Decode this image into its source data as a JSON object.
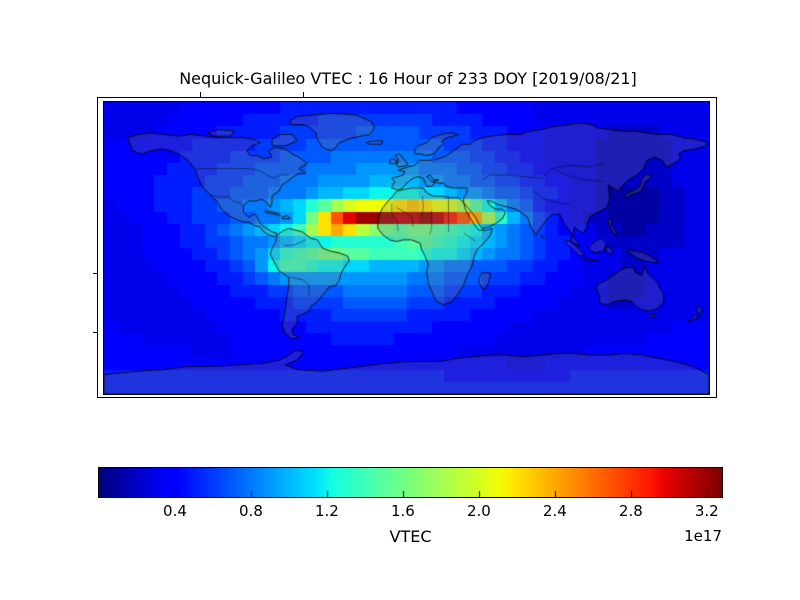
{
  "figure": {
    "background": "#ffffff"
  },
  "chart_data": {
    "type": "heatmap",
    "title": "Nequick-Galileo VTEC : 16 Hour of 233 DOY [2019/08/21]",
    "projection": "equirectangular world map, lon -180..180 (x), lat 90..-90 (y)",
    "map_overlay": "world coastlines with gray land tint and country borders",
    "colormap": "jet",
    "vmin": 0,
    "vmax": 3.28e+17,
    "grid": {
      "lon_start": -180,
      "lon_step": 7.5,
      "lat_start": 90,
      "lat_step": -7.5,
      "cols": 48,
      "rows": 24,
      "value_units": "1e16",
      "values": [
        [
          3,
          3,
          3,
          3,
          3,
          3,
          4,
          4,
          4,
          4,
          4,
          4,
          4,
          4,
          5,
          5,
          5,
          5,
          5,
          5,
          5,
          5,
          5,
          5,
          5,
          5,
          5,
          5,
          4,
          4,
          4,
          4,
          4,
          4,
          3,
          3,
          3,
          3,
          3,
          3,
          3,
          3,
          3,
          3,
          3,
          3,
          3,
          3
        ],
        [
          3,
          3,
          3,
          3,
          3,
          4,
          4,
          4,
          4,
          4,
          4,
          5,
          5,
          5,
          5,
          5,
          5,
          6,
          6,
          6,
          6,
          6,
          6,
          6,
          6,
          6,
          5,
          5,
          5,
          5,
          4,
          4,
          4,
          4,
          3,
          3,
          3,
          3,
          3,
          3,
          3,
          3,
          3,
          3,
          3,
          3,
          3,
          3
        ],
        [
          3,
          3,
          3,
          3,
          4,
          4,
          4,
          4,
          4,
          5,
          5,
          5,
          5,
          5,
          6,
          6,
          6,
          6,
          6,
          6,
          7,
          7,
          7,
          7,
          7,
          6,
          6,
          6,
          6,
          5,
          5,
          5,
          4,
          4,
          4,
          3,
          3,
          3,
          3,
          3,
          2,
          2,
          2,
          2,
          3,
          3,
          3,
          3
        ],
        [
          4,
          4,
          4,
          4,
          4,
          4,
          4,
          5,
          5,
          5,
          5,
          5,
          6,
          6,
          6,
          6,
          7,
          7,
          7,
          7,
          7,
          7,
          7,
          7,
          7,
          7,
          7,
          6,
          6,
          6,
          5,
          5,
          4,
          4,
          4,
          3,
          3,
          3,
          3,
          2,
          2,
          2,
          2,
          2,
          2,
          3,
          3,
          3
        ],
        [
          4,
          4,
          4,
          4,
          4,
          4,
          5,
          5,
          5,
          5,
          6,
          6,
          6,
          6,
          7,
          7,
          7,
          7,
          8,
          8,
          8,
          8,
          8,
          8,
          8,
          8,
          7,
          7,
          7,
          6,
          6,
          5,
          5,
          4,
          4,
          3,
          3,
          3,
          3,
          2,
          2,
          2,
          2,
          2,
          2,
          3,
          3,
          3
        ],
        [
          4,
          4,
          4,
          4,
          4,
          5,
          5,
          5,
          5,
          6,
          6,
          6,
          7,
          7,
          7,
          7,
          8,
          8,
          8,
          8,
          9,
          9,
          9,
          9,
          9,
          8,
          8,
          8,
          7,
          7,
          6,
          6,
          5,
          5,
          4,
          4,
          3,
          3,
          3,
          2,
          2,
          2,
          2,
          2,
          2,
          3,
          3,
          3
        ],
        [
          4,
          4,
          4,
          4,
          5,
          5,
          5,
          5,
          6,
          6,
          6,
          7,
          7,
          7,
          8,
          8,
          8,
          9,
          9,
          9,
          9,
          10,
          10,
          10,
          10,
          9,
          9,
          8,
          8,
          7,
          7,
          6,
          6,
          5,
          5,
          4,
          4,
          3,
          3,
          2,
          2,
          2,
          2,
          2,
          2,
          3,
          3,
          3
        ],
        [
          4,
          4,
          4,
          4,
          5,
          5,
          5,
          6,
          6,
          6,
          7,
          7,
          7,
          8,
          8,
          8,
          9,
          10,
          10,
          11,
          11,
          12,
          12,
          12,
          12,
          11,
          11,
          10,
          9,
          9,
          8,
          7,
          7,
          6,
          5,
          5,
          4,
          3,
          3,
          2,
          1,
          1,
          1,
          1,
          2,
          2,
          3,
          3
        ],
        [
          3,
          4,
          4,
          4,
          5,
          5,
          5,
          6,
          6,
          7,
          7,
          8,
          8,
          9,
          10,
          11,
          13,
          15,
          18,
          20,
          21,
          21,
          21,
          22,
          23,
          22,
          21,
          20,
          18,
          15,
          12,
          10,
          8,
          7,
          5,
          4,
          4,
          3,
          3,
          2,
          1,
          1,
          1,
          1,
          2,
          2,
          3,
          3
        ],
        [
          3,
          3,
          4,
          4,
          4,
          5,
          5,
          6,
          6,
          6,
          7,
          7,
          8,
          8,
          9,
          11,
          16,
          22,
          27,
          30,
          32,
          32,
          32,
          31,
          31,
          32,
          31,
          29,
          27,
          24,
          18,
          13,
          10,
          8,
          6,
          5,
          4,
          3,
          2,
          2,
          1,
          1,
          1,
          1,
          2,
          2,
          3,
          3
        ],
        [
          3,
          3,
          3,
          4,
          4,
          4,
          5,
          5,
          6,
          7,
          8,
          9,
          10,
          11,
          12,
          14,
          18,
          22,
          24,
          22,
          19,
          17,
          16,
          15,
          16,
          16,
          15,
          14,
          13,
          12,
          10,
          9,
          8,
          7,
          6,
          5,
          4,
          4,
          3,
          2,
          2,
          1,
          1,
          2,
          2,
          2,
          3,
          3
        ],
        [
          3,
          3,
          3,
          4,
          4,
          4,
          5,
          5,
          6,
          6,
          7,
          8,
          8,
          9,
          10,
          11,
          12,
          12,
          13,
          13,
          13,
          13,
          13,
          14,
          15,
          15,
          14,
          13,
          12,
          11,
          10,
          9,
          8,
          7,
          6,
          5,
          5,
          4,
          3,
          3,
          2,
          2,
          2,
          2,
          2,
          2,
          3,
          3
        ],
        [
          3,
          3,
          3,
          4,
          4,
          4,
          4,
          5,
          5,
          6,
          7,
          8,
          9,
          11,
          13,
          14,
          15,
          16,
          16,
          15,
          15,
          14,
          14,
          14,
          14,
          13,
          12,
          12,
          11,
          10,
          9,
          8,
          8,
          7,
          6,
          5,
          5,
          4,
          4,
          3,
          3,
          2,
          2,
          2,
          3,
          3,
          3,
          3
        ],
        [
          3,
          3,
          3,
          3,
          4,
          4,
          4,
          4,
          5,
          5,
          6,
          7,
          9,
          12,
          14,
          14,
          13,
          12,
          12,
          11,
          11,
          10,
          10,
          10,
          10,
          9,
          9,
          8,
          8,
          7,
          7,
          7,
          6,
          6,
          5,
          5,
          4,
          4,
          3,
          3,
          3,
          2,
          2,
          3,
          3,
          3,
          3,
          3
        ],
        [
          3,
          3,
          3,
          3,
          3,
          4,
          4,
          4,
          4,
          5,
          5,
          6,
          7,
          8,
          9,
          9,
          9,
          9,
          9,
          9,
          9,
          9,
          9,
          9,
          8,
          8,
          8,
          7,
          7,
          7,
          6,
          6,
          6,
          5,
          5,
          4,
          4,
          4,
          3,
          3,
          2,
          2,
          2,
          3,
          3,
          3,
          3,
          3
        ],
        [
          3,
          3,
          3,
          3,
          3,
          3,
          4,
          4,
          4,
          4,
          5,
          5,
          5,
          6,
          6,
          7,
          7,
          7,
          7,
          8,
          8,
          8,
          8,
          8,
          7,
          7,
          7,
          6,
          6,
          6,
          5,
          5,
          5,
          4,
          4,
          4,
          4,
          3,
          3,
          3,
          2,
          2,
          2,
          3,
          3,
          3,
          3,
          3
        ],
        [
          3,
          3,
          3,
          3,
          3,
          3,
          3,
          4,
          4,
          4,
          4,
          4,
          5,
          5,
          5,
          6,
          6,
          6,
          6,
          7,
          7,
          7,
          7,
          7,
          6,
          6,
          6,
          5,
          5,
          5,
          5,
          4,
          4,
          4,
          4,
          4,
          3,
          3,
          3,
          3,
          2,
          2,
          3,
          3,
          3,
          3,
          3,
          3
        ],
        [
          3,
          3,
          3,
          3,
          3,
          3,
          3,
          3,
          4,
          4,
          4,
          4,
          4,
          4,
          5,
          5,
          5,
          5,
          6,
          6,
          6,
          6,
          6,
          6,
          5,
          5,
          5,
          5,
          5,
          4,
          4,
          4,
          4,
          4,
          3,
          3,
          3,
          3,
          3,
          3,
          3,
          3,
          3,
          3,
          3,
          3,
          3,
          3
        ],
        [
          4,
          3,
          3,
          3,
          3,
          3,
          3,
          3,
          3,
          4,
          4,
          4,
          4,
          4,
          4,
          4,
          5,
          5,
          5,
          5,
          5,
          5,
          5,
          5,
          5,
          5,
          4,
          4,
          4,
          4,
          4,
          4,
          3,
          3,
          3,
          3,
          3,
          3,
          3,
          3,
          3,
          3,
          3,
          3,
          3,
          4,
          4,
          4
        ],
        [
          4,
          4,
          4,
          3,
          3,
          3,
          3,
          3,
          3,
          3,
          4,
          4,
          4,
          4,
          4,
          4,
          4,
          4,
          5,
          5,
          5,
          5,
          5,
          4,
          4,
          4,
          4,
          4,
          4,
          4,
          4,
          3,
          3,
          3,
          3,
          3,
          3,
          3,
          3,
          3,
          3,
          3,
          3,
          4,
          4,
          4,
          4,
          4
        ],
        [
          4,
          4,
          4,
          4,
          4,
          4,
          4,
          3,
          3,
          3,
          4,
          4,
          4,
          4,
          4,
          4,
          4,
          4,
          4,
          4,
          4,
          4,
          4,
          4,
          4,
          4,
          4,
          4,
          3,
          3,
          3,
          3,
          3,
          3,
          3,
          3,
          3,
          3,
          4,
          4,
          4,
          4,
          4,
          4,
          4,
          4,
          4,
          4
        ],
        [
          4,
          4,
          4,
          4,
          4,
          4,
          4,
          4,
          4,
          4,
          4,
          4,
          4,
          4,
          4,
          4,
          4,
          4,
          4,
          4,
          4,
          4,
          4,
          4,
          4,
          4,
          4,
          4,
          4,
          4,
          4,
          4,
          3,
          3,
          3,
          4,
          4,
          4,
          4,
          4,
          4,
          4,
          4,
          4,
          4,
          4,
          4,
          4
        ],
        [
          5,
          5,
          5,
          5,
          5,
          5,
          5,
          5,
          5,
          5,
          5,
          5,
          5,
          5,
          5,
          5,
          5,
          5,
          5,
          5,
          5,
          5,
          5,
          5,
          5,
          5,
          5,
          4,
          4,
          4,
          4,
          4,
          4,
          4,
          4,
          4,
          4,
          5,
          5,
          5,
          5,
          5,
          5,
          5,
          5,
          5,
          5,
          5
        ],
        [
          5,
          5,
          5,
          5,
          5,
          5,
          5,
          5,
          5,
          5,
          5,
          5,
          5,
          5,
          5,
          5,
          5,
          5,
          5,
          5,
          5,
          5,
          5,
          5,
          5,
          5,
          5,
          5,
          5,
          5,
          5,
          5,
          5,
          5,
          5,
          5,
          5,
          5,
          5,
          5,
          5,
          5,
          5,
          5,
          5,
          5,
          5,
          5
        ]
      ]
    },
    "colorbar": {
      "orientation": "horizontal",
      "ticks": [
        0.4,
        0.8,
        1.2,
        1.6,
        2.0,
        2.4,
        2.8,
        3.2
      ],
      "tick_labels": [
        "0.4",
        "0.8",
        "1.2",
        "1.6",
        "2.0",
        "2.4",
        "2.8",
        "3.2"
      ],
      "label": "VTEC",
      "offset_text": "1e17"
    }
  }
}
